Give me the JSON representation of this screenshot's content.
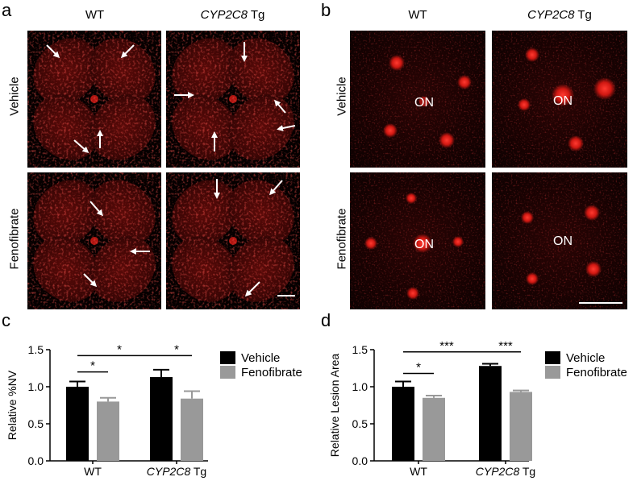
{
  "panels": {
    "a": {
      "label": "a",
      "col_wt": "WT",
      "col_tg_gene": "CYP2C8",
      "col_tg_suffix": " Tg",
      "row_vehicle": "Vehicle",
      "row_feno": "Fenofibrate"
    },
    "b": {
      "label": "b",
      "col_wt": "WT",
      "col_tg_gene": "CYP2C8",
      "col_tg_suffix": " Tg",
      "row_vehicle": "Vehicle",
      "row_feno": "Fenofibrate",
      "on_label": "ON"
    },
    "c": {
      "label": "c"
    },
    "d": {
      "label": "d"
    }
  },
  "colors": {
    "vehicle": "#000000",
    "fenofibrate": "#999999",
    "stain": "#e0201c"
  },
  "chart_data": [
    {
      "type": "bar",
      "panel": "c",
      "categories": [
        "WT",
        "CYP2C8 Tg"
      ],
      "ylabel": "Relative %NV",
      "ylim": [
        0,
        1.5
      ],
      "yticks": [
        0.0,
        0.5,
        1.0,
        1.5
      ],
      "legend": "right",
      "series": [
        {
          "name": "Vehicle",
          "values": [
            1.0,
            1.13
          ],
          "errors": [
            0.07,
            0.1
          ]
        },
        {
          "name": "Fenofibrate",
          "values": [
            0.8,
            0.84
          ],
          "errors": [
            0.05,
            0.1
          ]
        }
      ],
      "significance": [
        "*",
        "*",
        "*"
      ]
    },
    {
      "type": "bar",
      "panel": "d",
      "categories": [
        "WT",
        "CYP2C8 Tg"
      ],
      "ylabel": "Relative Lesion Area",
      "ylim": [
        0,
        1.5
      ],
      "yticks": [
        0.0,
        0.5,
        1.0,
        1.5
      ],
      "legend": "right",
      "series": [
        {
          "name": "Vehicle",
          "values": [
            1.0,
            1.28
          ],
          "errors": [
            0.07,
            0.03
          ]
        },
        {
          "name": "Fenofibrate",
          "values": [
            0.85,
            0.93
          ],
          "errors": [
            0.03,
            0.02
          ]
        }
      ],
      "significance": [
        "*",
        "***",
        "***"
      ]
    }
  ]
}
